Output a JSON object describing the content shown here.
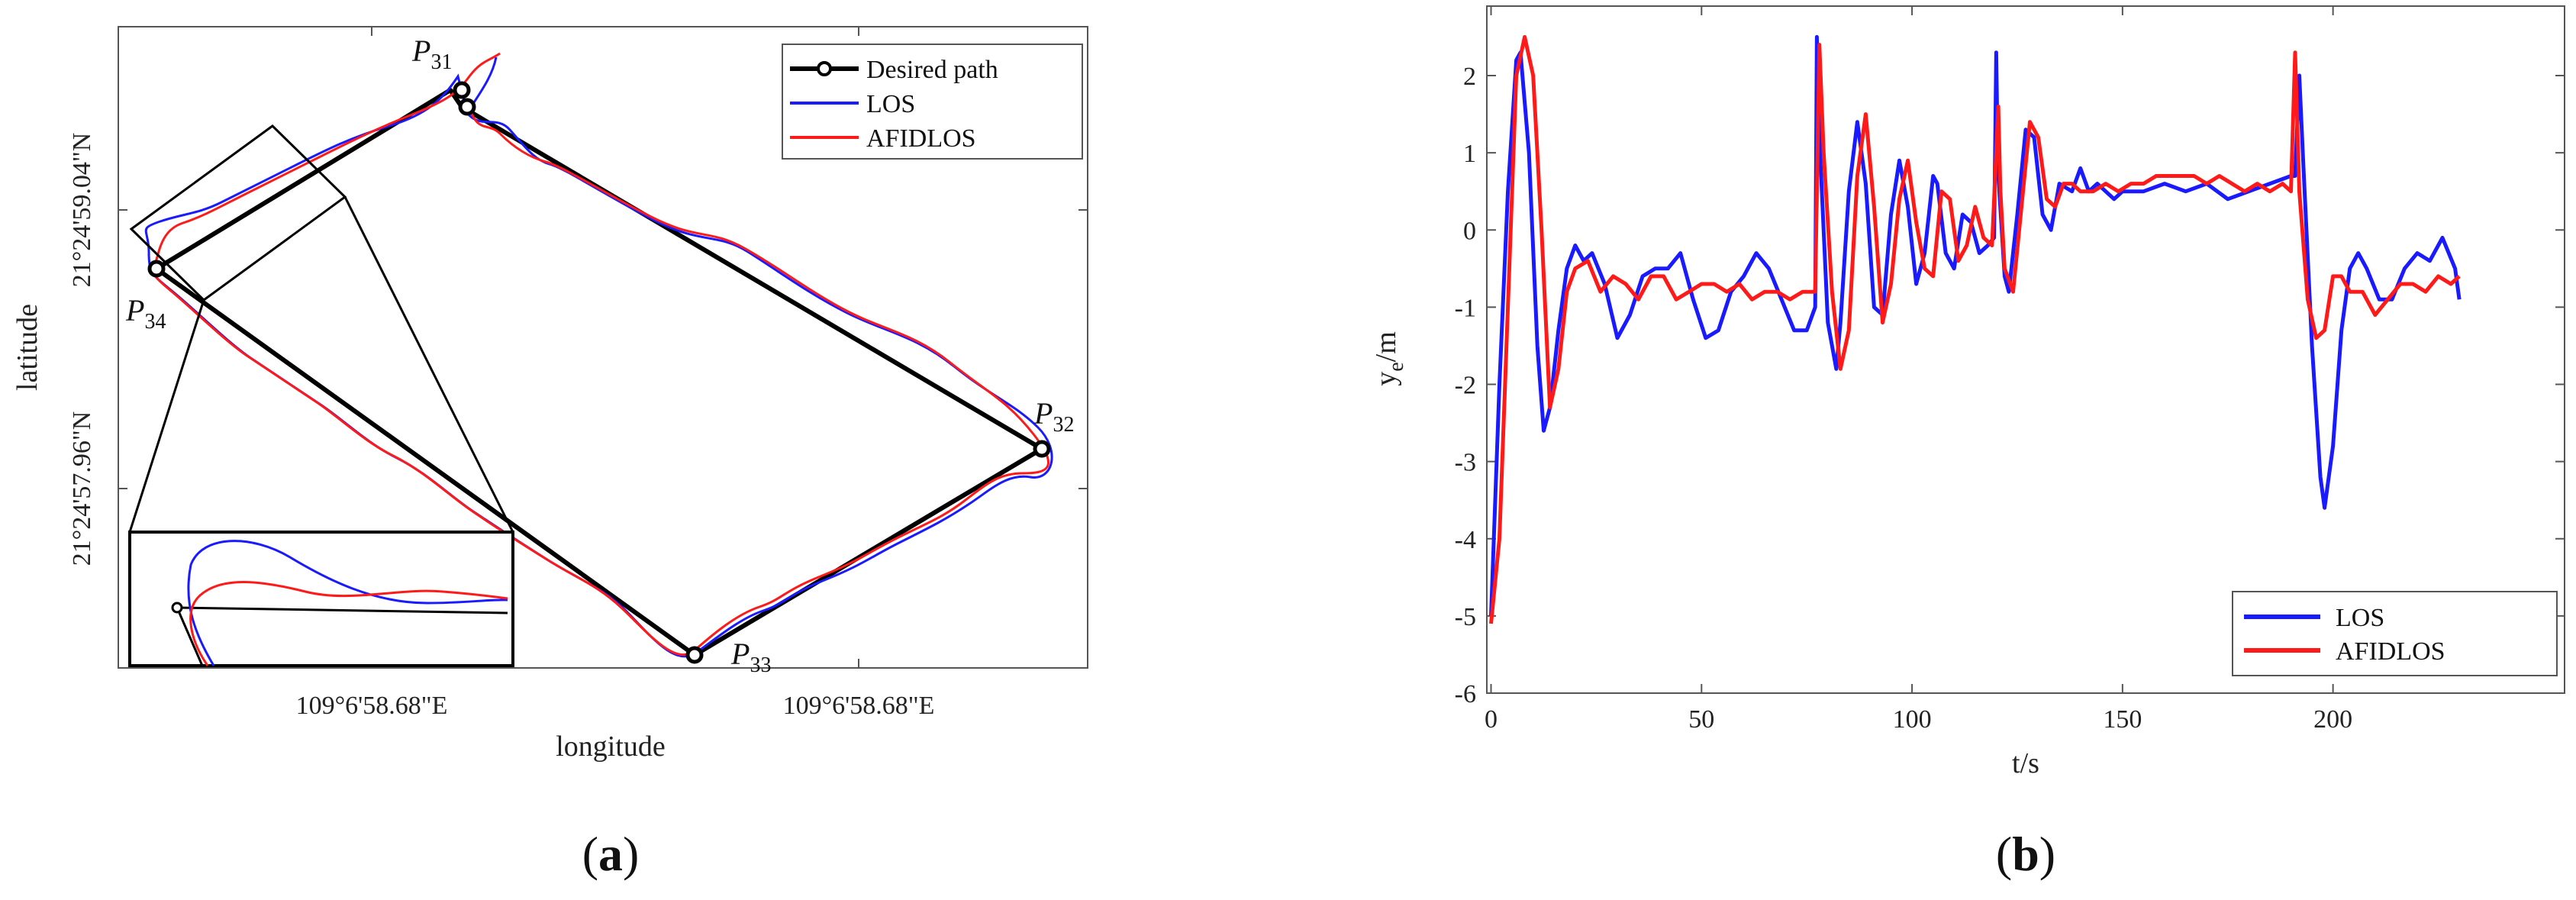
{
  "chart_data": [
    {
      "type": "line",
      "panel": "(a)",
      "panel_letter": "a",
      "xlabel": "longitude",
      "ylabel": "latitude",
      "x_tick_labels": [
        "109°6'58.68\"E",
        "109°6'58.68\"E"
      ],
      "y_tick_labels": [
        "21°24'59.04\"N",
        "21°24'57.96\"N"
      ],
      "legend": {
        "placement": "top-right",
        "entries": [
          "Desired path",
          "LOS",
          "AFIDLOS"
        ]
      },
      "waypoints": [
        {
          "name": "P",
          "sub": "31"
        },
        {
          "name": "P",
          "sub": "32"
        },
        {
          "name": "P",
          "sub": "33"
        },
        {
          "name": "P",
          "sub": "34"
        }
      ],
      "series": [
        {
          "name": "Desired path",
          "color": "#000000"
        },
        {
          "name": "LOS",
          "color": "#1a1aff"
        },
        {
          "name": "AFIDLOS",
          "color": "#ff1a1a"
        }
      ],
      "inset": "zoomed view near P34",
      "grid": false
    },
    {
      "type": "line",
      "panel": "(b)",
      "panel_letter": "b",
      "xlabel": "t/s",
      "ylabel": "y_e/m",
      "ylabel_main": "y",
      "ylabel_sub": "e",
      "ylabel_rest": "/m",
      "xlim": [
        -1,
        255
      ],
      "ylim": [
        -6,
        2.9
      ],
      "xticks": [
        0,
        50,
        100,
        150,
        200
      ],
      "yticks": [
        -6,
        -5,
        -4,
        -3,
        -2,
        -1,
        0,
        1,
        2
      ],
      "legend": {
        "placement": "bottom-right",
        "entries": [
          "LOS",
          "AFIDLOS"
        ]
      },
      "grid": false,
      "series": [
        {
          "name": "LOS",
          "color": "#1a1aff",
          "x": [
            0,
            2,
            4,
            6,
            7,
            9,
            11,
            12.5,
            14,
            16,
            18,
            20,
            22,
            24,
            27,
            30,
            33,
            36,
            39,
            42,
            45,
            48,
            51,
            54,
            57,
            60,
            63,
            66,
            69,
            72,
            75,
            77,
            77.4,
            78,
            80,
            82,
            83,
            85,
            87,
            89,
            91,
            93,
            95,
            97,
            99,
            101,
            103,
            105,
            106,
            108,
            110,
            112,
            114,
            116,
            118,
            119.5,
            120,
            120.4,
            122,
            123,
            125,
            127,
            129,
            131,
            133,
            135,
            138,
            140,
            142,
            144,
            146,
            148,
            150,
            155,
            160,
            165,
            170,
            175,
            180,
            185,
            190,
            191,
            192,
            193,
            195,
            197,
            198,
            200,
            202,
            204,
            206,
            208,
            211,
            214,
            217,
            220,
            223,
            226,
            229,
            230
          ],
          "y": [
            -5.0,
            -2.0,
            0.5,
            2.2,
            2.3,
            1.0,
            -1.5,
            -2.6,
            -2.3,
            -1.3,
            -0.5,
            -0.2,
            -0.4,
            -0.3,
            -0.7,
            -1.4,
            -1.1,
            -0.6,
            -0.5,
            -0.5,
            -0.3,
            -0.9,
            -1.4,
            -1.3,
            -0.8,
            -0.6,
            -0.3,
            -0.5,
            -0.9,
            -1.3,
            -1.3,
            -1.0,
            2.5,
            1.2,
            -1.2,
            -1.8,
            -1.2,
            0.5,
            1.4,
            0.6,
            -1.0,
            -1.1,
            0.2,
            0.9,
            0.3,
            -0.7,
            -0.3,
            0.7,
            0.6,
            -0.3,
            -0.5,
            0.2,
            0.1,
            -0.3,
            -0.2,
            -0.1,
            2.3,
            0.8,
            -0.6,
            -0.8,
            0.2,
            1.3,
            1.2,
            0.2,
            0.0,
            0.6,
            0.5,
            0.8,
            0.5,
            0.6,
            0.5,
            0.4,
            0.5,
            0.5,
            0.6,
            0.5,
            0.6,
            0.4,
            0.5,
            0.6,
            0.7,
            0.7,
            2.0,
            0.8,
            -1.5,
            -3.2,
            -3.6,
            -2.8,
            -1.3,
            -0.5,
            -0.3,
            -0.5,
            -0.9,
            -0.9,
            -0.5,
            -0.3,
            -0.4,
            -0.1,
            -0.5,
            -0.9
          ]
        },
        {
          "name": "AFIDLOS",
          "color": "#ff1a1a",
          "x": [
            0,
            2,
            4,
            6,
            8,
            10,
            12,
            14,
            16,
            18,
            20,
            23,
            26,
            29,
            32,
            35,
            38,
            41,
            44,
            47,
            50,
            53,
            56,
            59,
            62,
            65,
            68,
            71,
            74,
            77,
            78,
            79,
            81,
            83,
            85,
            87,
            89,
            91,
            93,
            95,
            97,
            99,
            101,
            103,
            105,
            107,
            109,
            111,
            113,
            115,
            117,
            119,
            120.5,
            121,
            122,
            124,
            126,
            128,
            130,
            132,
            134,
            136,
            138,
            140,
            143,
            146,
            149,
            152,
            155,
            158,
            161,
            164,
            167,
            170,
            173,
            176,
            179,
            182,
            185,
            188,
            190,
            191,
            192,
            194,
            196,
            198,
            200,
            202,
            204,
            207,
            210,
            213,
            216,
            219,
            222,
            225,
            228,
            230
          ],
          "y": [
            -5.1,
            -4.0,
            -1.0,
            2.0,
            2.5,
            2.0,
            0.0,
            -2.3,
            -1.8,
            -0.8,
            -0.5,
            -0.4,
            -0.8,
            -0.6,
            -0.7,
            -0.9,
            -0.6,
            -0.6,
            -0.9,
            -0.8,
            -0.7,
            -0.7,
            -0.8,
            -0.7,
            -0.9,
            -0.8,
            -0.8,
            -0.9,
            -0.8,
            -0.8,
            2.4,
            1.0,
            -0.8,
            -1.8,
            -1.3,
            0.7,
            1.5,
            0.3,
            -1.2,
            -0.7,
            0.4,
            0.9,
            0.1,
            -0.5,
            -0.6,
            0.5,
            0.4,
            -0.4,
            -0.2,
            0.3,
            -0.1,
            -0.2,
            1.6,
            0.5,
            -0.5,
            -0.8,
            0.3,
            1.4,
            1.2,
            0.4,
            0.3,
            0.6,
            0.6,
            0.5,
            0.5,
            0.6,
            0.5,
            0.6,
            0.6,
            0.7,
            0.7,
            0.7,
            0.7,
            0.6,
            0.7,
            0.6,
            0.5,
            0.6,
            0.5,
            0.6,
            0.5,
            2.3,
            0.5,
            -0.9,
            -1.4,
            -1.3,
            -0.6,
            -0.6,
            -0.8,
            -0.8,
            -1.1,
            -0.9,
            -0.7,
            -0.7,
            -0.8,
            -0.6,
            -0.7,
            -0.6
          ]
        }
      ]
    }
  ]
}
